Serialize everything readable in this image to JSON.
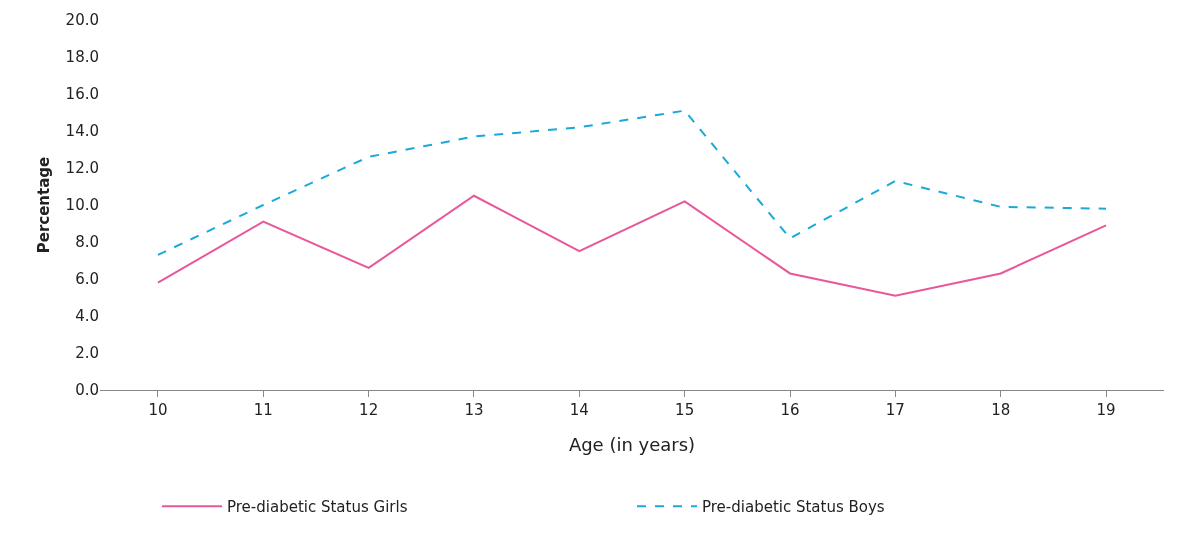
{
  "chart_data": {
    "type": "line",
    "xlabel": "Age (in years)",
    "ylabel": "Percentage",
    "categories": [
      "10",
      "11",
      "12",
      "13",
      "14",
      "15",
      "16",
      "17",
      "18",
      "19"
    ],
    "series": [
      {
        "name": "Pre-diabetic Status Girls",
        "color": "#e8579a",
        "line_style": "solid",
        "values": [
          5.8,
          9.1,
          6.6,
          10.5,
          7.5,
          10.2,
          6.3,
          5.1,
          6.3,
          8.9
        ]
      },
      {
        "name": "Pre-diabetic Status Boys",
        "color": "#1aa9d8",
        "line_style": "dashed",
        "values": [
          7.3,
          10.0,
          12.6,
          13.7,
          14.2,
          15.1,
          8.2,
          11.3,
          9.9,
          9.8
        ]
      }
    ],
    "ylim": [
      0,
      20
    ],
    "yticks": [
      {
        "value": 0,
        "label": "0.0"
      },
      {
        "value": 2,
        "label": "2.0"
      },
      {
        "value": 4,
        "label": "4.0"
      },
      {
        "value": 6,
        "label": "6.0"
      },
      {
        "value": 8,
        "label": "8.0"
      },
      {
        "value": 10,
        "label": "10.0"
      },
      {
        "value": 12,
        "label": "12.0"
      },
      {
        "value": 14,
        "label": "14.0"
      },
      {
        "value": 16,
        "label": "16.0"
      },
      {
        "value": 18,
        "label": "18.0"
      },
      {
        "value": 20,
        "label": "20.0"
      }
    ],
    "grid": false,
    "legend": "bottom",
    "marker": "none"
  }
}
